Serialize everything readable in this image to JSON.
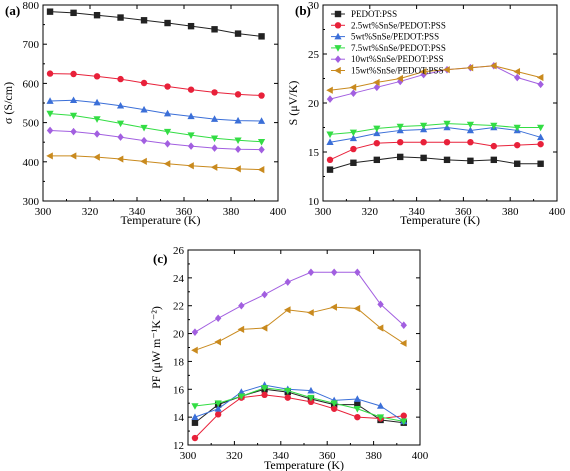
{
  "panel_labels": [
    "(a)",
    "(b)",
    "(c)"
  ],
  "chart_data": [
    {
      "type": "line",
      "panel": "(a)",
      "title": "",
      "xlabel": "Temperature (K)",
      "ylabel": "σ (S/cm)",
      "xlim": [
        300,
        400
      ],
      "ylim": [
        300,
        800
      ],
      "xticks": [
        300,
        320,
        340,
        360,
        380,
        400
      ],
      "yticks": [
        300,
        400,
        500,
        600,
        700,
        800
      ],
      "x": [
        303,
        313,
        323,
        333,
        343,
        353,
        363,
        373,
        383,
        393
      ],
      "series": [
        {
          "color": "#222222",
          "marker": "square",
          "values": [
            783,
            780,
            774,
            768,
            761,
            754,
            746,
            738,
            727,
            720
          ]
        },
        {
          "color": "#e8213a",
          "marker": "circle",
          "values": [
            625,
            624,
            618,
            611,
            601,
            592,
            584,
            577,
            572,
            569
          ]
        },
        {
          "color": "#3b6fd8",
          "marker": "triangle",
          "values": [
            555,
            557,
            551,
            543,
            533,
            523,
            516,
            509,
            505,
            504
          ]
        },
        {
          "color": "#33dd44",
          "marker": "triangle-down",
          "values": [
            523,
            518,
            509,
            498,
            487,
            477,
            468,
            460,
            455,
            451
          ]
        },
        {
          "color": "#a25fe0",
          "marker": "diamond",
          "values": [
            480,
            477,
            471,
            463,
            454,
            446,
            440,
            435,
            432,
            431
          ]
        },
        {
          "color": "#c98a1e",
          "marker": "triangle-left",
          "values": [
            415,
            415,
            412,
            407,
            401,
            395,
            390,
            386,
            382,
            380
          ]
        }
      ]
    },
    {
      "type": "line",
      "panel": "(b)",
      "title": "",
      "xlabel": "Temperature (K)",
      "ylabel": "S (μV/K)",
      "xlim": [
        300,
        400
      ],
      "ylim": [
        10,
        30
      ],
      "xticks": [
        300,
        320,
        340,
        360,
        380,
        400
      ],
      "yticks": [
        10,
        15,
        20,
        25,
        30
      ],
      "legend_position": "top-left",
      "x": [
        303,
        313,
        323,
        333,
        343,
        353,
        363,
        373,
        383,
        393
      ],
      "series": [
        {
          "name": "PEDOT:PSS",
          "color": "#222222",
          "marker": "square",
          "values": [
            13.2,
            13.9,
            14.2,
            14.5,
            14.4,
            14.2,
            14.1,
            14.2,
            13.8,
            13.8
          ]
        },
        {
          "name": "2.5wt%SnSe/PEDOT:PSS",
          "color": "#e8213a",
          "marker": "circle",
          "values": [
            14.2,
            15.3,
            15.9,
            16.0,
            16.0,
            16.0,
            16.0,
            15.6,
            15.7,
            15.8
          ]
        },
        {
          "name": "5wt%SnSe/PEDOT:PSS",
          "color": "#3b6fd8",
          "marker": "triangle",
          "values": [
            16.0,
            16.4,
            16.9,
            17.2,
            17.3,
            17.5,
            17.2,
            17.5,
            17.2,
            16.5
          ]
        },
        {
          "name": "7.5wt%SnSe/PEDOT:PSS",
          "color": "#33dd44",
          "marker": "triangle-down",
          "values": [
            16.8,
            17.0,
            17.4,
            17.6,
            17.7,
            17.9,
            17.8,
            17.7,
            17.5,
            17.5
          ]
        },
        {
          "name": "10wt%SnSe/PEDOT:PSS",
          "color": "#a25fe0",
          "marker": "diamond",
          "values": [
            20.4,
            21.0,
            21.6,
            22.2,
            22.9,
            23.4,
            23.6,
            23.8,
            22.6,
            21.9
          ]
        },
        {
          "name": "15wt%SnSe/PEDOT:PSS",
          "color": "#c98a1e",
          "marker": "triangle-left",
          "values": [
            21.3,
            21.6,
            22.1,
            22.5,
            23.2,
            23.4,
            23.6,
            23.8,
            23.2,
            22.6
          ]
        }
      ]
    },
    {
      "type": "line",
      "panel": "(c)",
      "title": "",
      "xlabel": "Temperature (K)",
      "ylabel": "PF (μW m⁻¹K⁻²)",
      "xlim": [
        300,
        400
      ],
      "ylim": [
        12,
        26
      ],
      "xticks": [
        300,
        320,
        340,
        360,
        380,
        400
      ],
      "yticks": [
        12,
        14,
        16,
        18,
        20,
        22,
        24,
        26
      ],
      "x": [
        303,
        313,
        323,
        333,
        343,
        353,
        363,
        373,
        383,
        393
      ],
      "series": [
        {
          "color": "#222222",
          "marker": "square",
          "values": [
            13.6,
            14.9,
            15.5,
            16.0,
            15.8,
            15.3,
            14.9,
            14.9,
            13.8,
            13.6
          ]
        },
        {
          "color": "#e8213a",
          "marker": "circle",
          "values": [
            12.5,
            14.2,
            15.4,
            15.6,
            15.4,
            15.1,
            14.6,
            14.0,
            13.9,
            14.1
          ]
        },
        {
          "color": "#3b6fd8",
          "marker": "triangle",
          "values": [
            14.0,
            14.6,
            15.8,
            16.3,
            16.0,
            15.9,
            15.2,
            15.3,
            14.8,
            13.7
          ]
        },
        {
          "color": "#33dd44",
          "marker": "triangle-down",
          "values": [
            14.8,
            15.0,
            15.5,
            16.1,
            15.9,
            15.4,
            15.0,
            14.6,
            14.0,
            13.7
          ]
        },
        {
          "color": "#a25fe0",
          "marker": "diamond",
          "values": [
            20.1,
            21.1,
            22.0,
            22.8,
            23.7,
            24.4,
            24.4,
            24.4,
            22.1,
            20.6
          ]
        },
        {
          "color": "#c98a1e",
          "marker": "triangle-left",
          "values": [
            18.8,
            19.4,
            20.3,
            20.4,
            21.7,
            21.5,
            21.9,
            21.8,
            20.4,
            19.3
          ]
        }
      ]
    }
  ]
}
